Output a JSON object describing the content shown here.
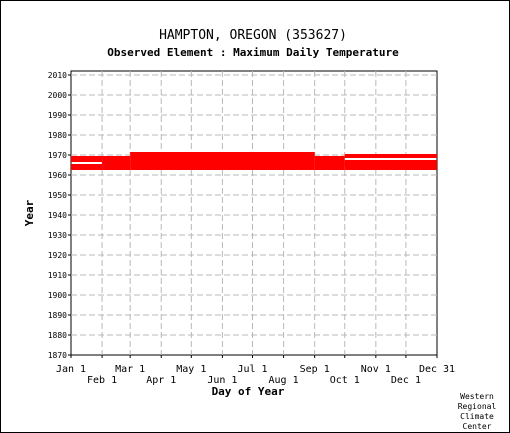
{
  "chart_data": {
    "type": "bar",
    "title": "HAMPTON, OREGON   (353627)",
    "subtitle": "Observed Element : Maximum Daily Temperature",
    "xlabel": "Day of Year",
    "ylabel": "Year",
    "xlim": [
      1,
      366
    ],
    "ylim": [
      1870,
      2012
    ],
    "grid": true,
    "y_ticks": [
      1870,
      1880,
      1890,
      1900,
      1910,
      1920,
      1930,
      1940,
      1950,
      1960,
      1970,
      1980,
      1990,
      2000,
      2010
    ],
    "x_ticks_upper": [
      {
        "label": "Jan 1",
        "day": 1
      },
      {
        "label": "Mar 1",
        "day": 60
      },
      {
        "label": "May 1",
        "day": 121
      },
      {
        "label": "Jul 1",
        "day": 182
      },
      {
        "label": "Sep 1",
        "day": 244
      },
      {
        "label": "Nov 1",
        "day": 305
      },
      {
        "label": "Dec 31",
        "day": 366
      }
    ],
    "x_ticks_lower": [
      {
        "label": "Feb 1",
        "day": 32
      },
      {
        "label": "Apr 1",
        "day": 91
      },
      {
        "label": "Jun 1",
        "day": 152
      },
      {
        "label": "Aug 1",
        "day": 213
      },
      {
        "label": "Oct 1",
        "day": 274
      },
      {
        "label": "Dec 1",
        "day": 335
      }
    ],
    "series": [
      {
        "color": "#ff0000",
        "bands": [
          {
            "start_day": 1,
            "end_day": 32,
            "year_start": 1962.5,
            "year_end": 1965.5
          },
          {
            "start_day": 1,
            "end_day": 32,
            "year_start": 1966.5,
            "year_end": 1969.5
          },
          {
            "start_day": 32,
            "end_day": 60,
            "year_start": 1962.5,
            "year_end": 1969.5
          },
          {
            "start_day": 60,
            "end_day": 244,
            "year_start": 1962.5,
            "year_end": 1971.5
          },
          {
            "start_day": 244,
            "end_day": 274,
            "year_start": 1962.5,
            "year_end": 1969.5
          },
          {
            "start_day": 274,
            "end_day": 366,
            "year_start": 1962.5,
            "year_end": 1967.5
          },
          {
            "start_day": 274,
            "end_day": 366,
            "year_start": 1968.5,
            "year_end": 1970.5
          }
        ]
      }
    ]
  },
  "credit": [
    "Western",
    "Regional",
    "Climate",
    "Center"
  ]
}
